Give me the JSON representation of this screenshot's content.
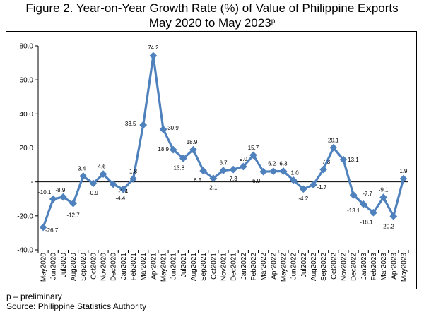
{
  "title_line1": "Figure 2. Year-on-Year Growth Rate (%) of Value of Philippine Exports",
  "title_line2": "May 2020 to May 2023",
  "title_sup": "p",
  "footnote": "p – preliminary",
  "source": "Source:  Philippine Statistics Authority",
  "colors": {
    "series": "#4F81BD",
    "axis": "#000000"
  },
  "chart_data": {
    "type": "line",
    "title": "Figure 2. Year-on-Year Growth Rate (%) of Value of Philippine Exports May 2020 to May 2023p",
    "xlabel": "",
    "ylabel": "",
    "ylim": [
      -40,
      80
    ],
    "yticks": [
      80,
      60,
      40,
      20,
      0,
      -20,
      -40
    ],
    "ytick_labels": [
      "80.0",
      "60.0",
      "40.0",
      "20.0",
      "-",
      "-20.0",
      "-40.0"
    ],
    "grid": false,
    "categories": [
      "May2020",
      "Jun2020",
      "Jul2020",
      "Aug2020",
      "Sep2020",
      "Oct2020",
      "Nov2020",
      "Dec2020",
      "Jan2021",
      "Feb2021",
      "Mar2021",
      "Apr2021",
      "May2021",
      "Jun2021",
      "Jul2021",
      "Aug2021",
      "Sep2021",
      "Oct2021",
      "Nov2021",
      "Dec2021",
      "Jan2022",
      "Feb2022",
      "Mar2022",
      "Apr2022",
      "May2022",
      "Jun2022",
      "Jul2022",
      "Aug2022",
      "Sep2022",
      "Oct2022",
      "Nov2022",
      "Dec2022",
      "Jan2023",
      "Feb2023",
      "Mar2023",
      "Apr2023",
      "May2023"
    ],
    "series": [
      {
        "name": "Year-on-Year Growth Rate (%)",
        "values": [
          -26.7,
          -10.1,
          -8.9,
          -12.7,
          3.4,
          -0.9,
          4.6,
          -1.4,
          -4.4,
          1.8,
          33.5,
          74.2,
          30.9,
          18.9,
          13.8,
          18.9,
          6.5,
          2.1,
          6.7,
          7.3,
          9.0,
          15.7,
          6.0,
          6.2,
          6.3,
          1.0,
          -4.2,
          -1.7,
          7.3,
          20.1,
          13.1,
          -7.7,
          -13.1,
          -18.1,
          -9.1,
          -20.2,
          1.9
        ],
        "labels": [
          "-26.7",
          "-10.1",
          "-8.9",
          "-12.7",
          "3.4",
          "-0.9",
          "4.6",
          "-1.4",
          "-4.4",
          "1.8",
          "33.5",
          "74.2",
          "30.9",
          "18.9",
          "13.8",
          "18.9",
          "6.5",
          "2.1",
          "6.7",
          "7.3",
          "9.0",
          "15.7",
          "6.0",
          "6.2",
          "6.3",
          "1.0",
          "-4.2",
          "-1.7",
          "7.3",
          "20.1",
          "13.1",
          "-7.7",
          "-13.1",
          "-18.1",
          "-9.1",
          "-20.2",
          "1.9"
        ]
      }
    ]
  }
}
